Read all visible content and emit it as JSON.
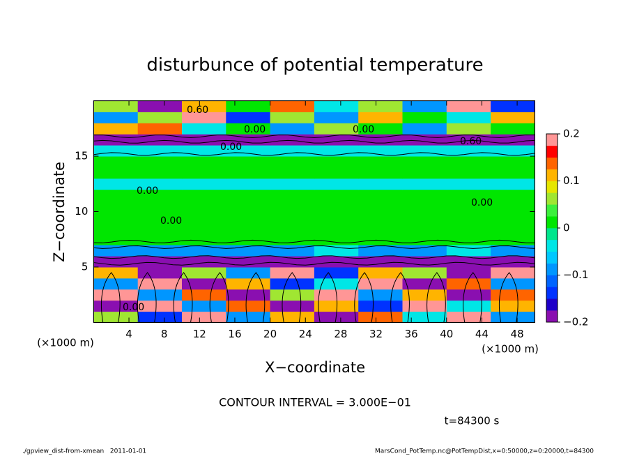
{
  "chart_data": {
    "type": "heatmap",
    "title": "disturbunce of potential temperature",
    "x_label": "X−coordinate",
    "y_label": "Z−coordinate",
    "x_unit_left": "(×1000 m)",
    "x_unit_right": "(×1000 m)",
    "xlim": [
      0,
      50
    ],
    "ylim": [
      0,
      20
    ],
    "xticks": [
      4,
      8,
      12,
      16,
      20,
      24,
      28,
      32,
      36,
      40,
      44,
      48
    ],
    "yticks": [
      5,
      10,
      15
    ],
    "field": {
      "xbins": [
        0,
        5,
        10,
        15,
        20,
        25,
        30,
        35,
        40,
        45,
        50
      ],
      "zbins": [
        0,
        1,
        2,
        3,
        4,
        5,
        6,
        7,
        8,
        9,
        10,
        11,
        12,
        13,
        14,
        15,
        16,
        17,
        18,
        19,
        20
      ],
      "values": [
        [
          0.05,
          -0.15,
          0.2,
          -0.1,
          0.1,
          -0.2,
          0.15,
          -0.05,
          0.2,
          -0.1
        ],
        [
          -0.2,
          0.2,
          -0.1,
          0.15,
          -0.2,
          0.1,
          -0.15,
          0.2,
          -0.05,
          0.1
        ],
        [
          0.2,
          -0.1,
          0.15,
          -0.2,
          0.05,
          0.2,
          -0.1,
          0.1,
          -0.2,
          0.15
        ],
        [
          -0.1,
          0.2,
          -0.2,
          0.1,
          -0.15,
          -0.05,
          0.2,
          -0.2,
          0.15,
          -0.1
        ],
        [
          0.1,
          -0.2,
          0.05,
          -0.1,
          0.2,
          -0.15,
          0.1,
          0.05,
          -0.2,
          0.2
        ],
        [
          -0.2,
          -0.2,
          -0.2,
          -0.2,
          -0.2,
          -0.2,
          -0.2,
          -0.2,
          -0.2,
          -0.2
        ],
        [
          -0.08,
          -0.08,
          -0.08,
          -0.08,
          -0.08,
          -0.05,
          -0.08,
          -0.08,
          -0.05,
          -0.08
        ],
        [
          0,
          0,
          0,
          0,
          0,
          0,
          0,
          0,
          0.02,
          0
        ],
        [
          0.01,
          0.01,
          0.01,
          0.01,
          0.01,
          0.01,
          0.01,
          0.01,
          0.01,
          0.01
        ],
        [
          0,
          0,
          0,
          0,
          0,
          0,
          0,
          0,
          0,
          0.02
        ],
        [
          0,
          0,
          0,
          0,
          0,
          0,
          0,
          0,
          0,
          0
        ],
        [
          0.01,
          0.01,
          0,
          0,
          0,
          0,
          0,
          0,
          0,
          0.01
        ],
        [
          -0.03,
          -0.03,
          -0.03,
          -0.03,
          -0.03,
          -0.03,
          -0.03,
          -0.03,
          -0.03,
          -0.03
        ],
        [
          0,
          0,
          0,
          0,
          0,
          0,
          0,
          0,
          0,
          0
        ],
        [
          0.01,
          0.01,
          0.01,
          0.01,
          0.01,
          0.01,
          0.01,
          0.01,
          0.01,
          0.01
        ],
        [
          -0.05,
          -0.05,
          -0.05,
          -0.05,
          -0.05,
          -0.05,
          -0.05,
          -0.05,
          -0.05,
          -0.05
        ],
        [
          -0.2,
          -0.2,
          -0.2,
          -0.2,
          -0.2,
          -0.2,
          -0.2,
          -0.2,
          -0.2,
          -0.2
        ],
        [
          0.1,
          0.15,
          -0.05,
          0,
          -0.1,
          0.05,
          0,
          -0.1,
          0.05,
          0
        ],
        [
          -0.1,
          0.05,
          0.2,
          -0.15,
          0.05,
          -0.1,
          0.1,
          0,
          -0.05,
          0.1
        ],
        [
          0.05,
          -0.2,
          0.1,
          0,
          0.15,
          -0.05,
          0.05,
          -0.1,
          0.2,
          -0.15
        ]
      ]
    },
    "colorbar": {
      "lim": [
        -0.2,
        0.2
      ],
      "ticks": [
        {
          "value": -0.2,
          "label": "−0.2"
        },
        {
          "value": -0.1,
          "label": "−0.1"
        },
        0,
        0.1,
        0.2
      ],
      "colors": [
        "#8a0fb0",
        "#1e00c8",
        "#0032ff",
        "#0064ff",
        "#0096ff",
        "#00c8ff",
        "#00e6e6",
        "#00e68c",
        "#00e600",
        "#3cf03c",
        "#a0e632",
        "#e6e600",
        "#ffb400",
        "#ff6400",
        "#ff0000",
        "#ff9696"
      ]
    },
    "contour_labels": [
      "0.60",
      "0.00",
      "0.00",
      "0.00",
      "0.60",
      "0.00",
      "0.00",
      "0.00",
      "0.00"
    ],
    "contour_interval": "CONTOUR INTERVAL = 3.000E−01",
    "time_label": "t=84300 s",
    "footer_left": "./gpview_dist-from-xmean   2011-01-01",
    "footer_right": "MarsCond_PotTemp.nc@PotTempDist,x=0:50000,z=0:20000,t=84300"
  }
}
